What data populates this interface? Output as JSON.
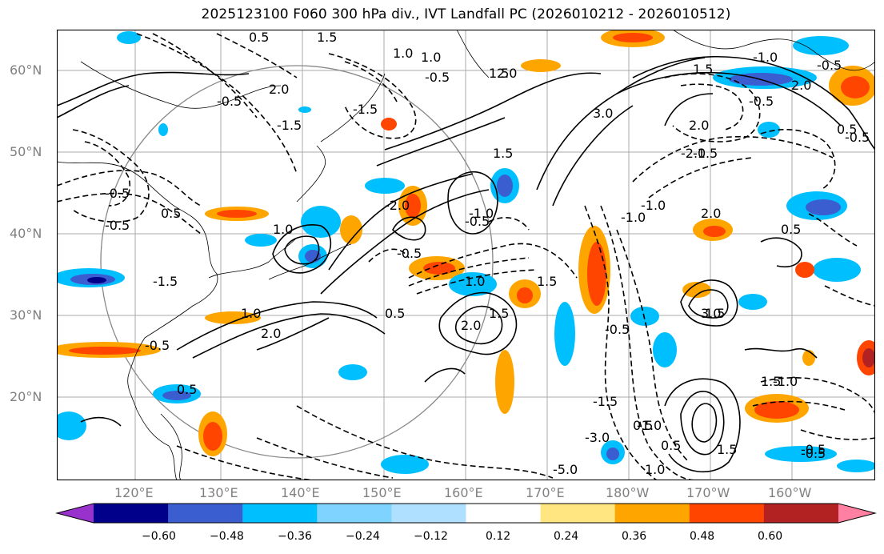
{
  "title": "2025123100 F060 300 hPa div., IVT Landfall PC (2026010212 - 2026010512)",
  "lat_labels": [
    "60°N",
    "50°N",
    "40°N",
    "30°N",
    "20°N"
  ],
  "lon_labels": [
    "120°E",
    "130°E",
    "140°E",
    "150°E",
    "160°E",
    "170°E",
    "180°W",
    "170°W",
    "160°W"
  ],
  "contour_labels": [
    "0.5",
    "1.5",
    "-1.5",
    "1.0",
    "2.0",
    "-0.5",
    "1.5",
    "-0.5",
    "-1.5",
    "3.0",
    "2.0",
    "-1.0",
    "1.5",
    "1.0",
    "-0.5",
    "2.0",
    "-0.5",
    "1.5",
    "-1.0",
    "2.0",
    "-0.5",
    "-2.0",
    "-0.5",
    "0.5",
    "1.0",
    "1.5",
    "2.0",
    "1.5",
    "-0.5",
    "0.5",
    "0.5",
    "-0.5",
    "0.5",
    "-1.0",
    "-0.5",
    "-1.5",
    "1.0",
    "2.0",
    "-2.0",
    "-1.5",
    "2.0",
    "1.5",
    "3.0",
    "-0.5",
    "-1.5",
    "1.5",
    "-1.0",
    "0.5",
    "-5.0",
    "-3.0",
    "-1.0",
    "0.5",
    "1.0",
    "1.5",
    "-0.5",
    "-1.0",
    "-0.5",
    "-0.5",
    "1.0",
    "0.5"
  ],
  "colorbar": {
    "ticks": [
      "−0.60",
      "−0.48",
      "−0.36",
      "−0.24",
      "−0.12",
      "0.12",
      "0.24",
      "0.36",
      "0.48",
      "0.60"
    ],
    "colors": [
      "#9932cc",
      "#00008b",
      "#3a5ed0",
      "#00bfff",
      "#7fd4ff",
      "#b0e0ff",
      "#ffffff",
      "#ffe680",
      "#ffa500",
      "#ff4500",
      "#b22222",
      "#ff80a0"
    ]
  }
}
